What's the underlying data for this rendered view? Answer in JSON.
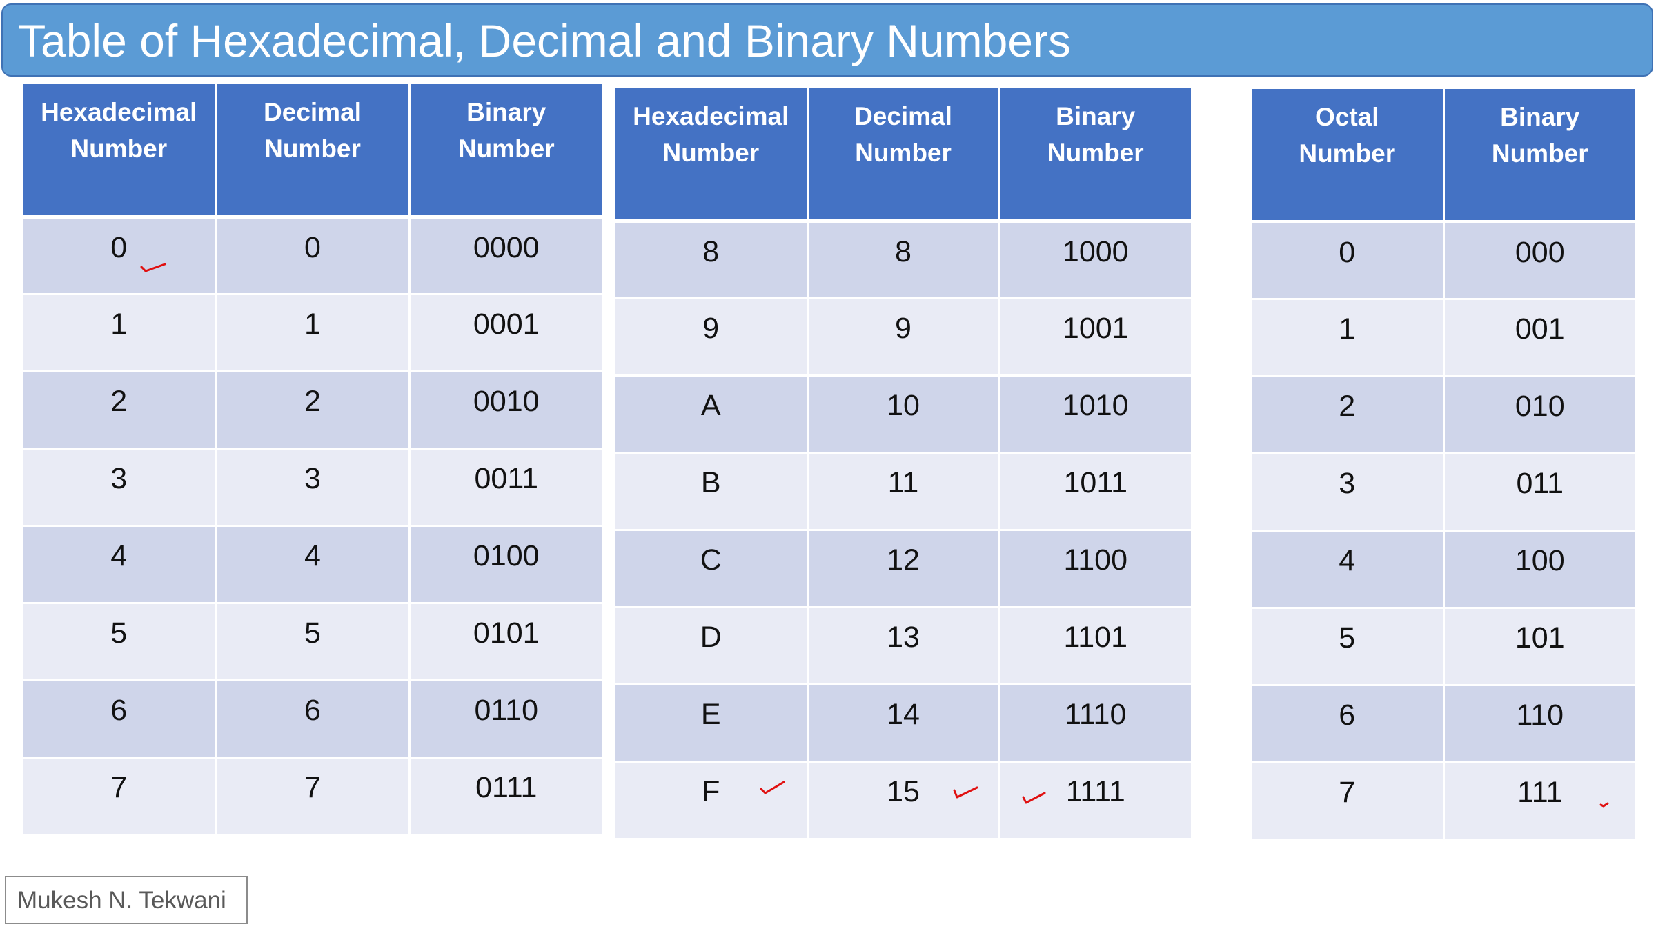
{
  "title": "Table of Hexadecimal, Decimal and Binary Numbers",
  "tables": [
    {
      "headers": [
        [
          "Hexadecimal",
          "Number"
        ],
        [
          "Decimal",
          "Number"
        ],
        [
          "Binary",
          "Number"
        ]
      ],
      "rows": [
        [
          "0",
          "0",
          "0000"
        ],
        [
          "1",
          "1",
          "0001"
        ],
        [
          "2",
          "2",
          "0010"
        ],
        [
          "3",
          "3",
          "0011"
        ],
        [
          "4",
          "4",
          "0100"
        ],
        [
          "5",
          "5",
          "0101"
        ],
        [
          "6",
          "6",
          "0110"
        ],
        [
          "7",
          "7",
          "0111"
        ]
      ]
    },
    {
      "headers": [
        [
          "Hexadecimal",
          "Number"
        ],
        [
          "Decimal",
          "Number"
        ],
        [
          "Binary",
          "Number"
        ]
      ],
      "rows": [
        [
          "8",
          "8",
          "1000"
        ],
        [
          "9",
          "9",
          "1001"
        ],
        [
          "A",
          "10",
          "1010"
        ],
        [
          "B",
          "11",
          "1011"
        ],
        [
          "C",
          "12",
          "1100"
        ],
        [
          "D",
          "13",
          "1101"
        ],
        [
          "E",
          "14",
          "1110"
        ],
        [
          "F",
          "15",
          "1111"
        ]
      ]
    },
    {
      "headers": [
        [
          "Octal",
          "Number"
        ],
        [
          "Binary",
          "Number"
        ]
      ],
      "rows": [
        [
          "0",
          "000"
        ],
        [
          "1",
          "001"
        ],
        [
          "2",
          "010"
        ],
        [
          "3",
          "011"
        ],
        [
          "4",
          "100"
        ],
        [
          "5",
          "101"
        ],
        [
          "6",
          "110"
        ],
        [
          "7",
          "111"
        ]
      ]
    }
  ],
  "author": "Mukesh N. Tekwani",
  "colors": {
    "title_bar": "#5b9bd5",
    "header": "#4472c4",
    "row_dark": "#cfd5ea",
    "row_light": "#e9ebf5",
    "annotation": "#e01010"
  }
}
